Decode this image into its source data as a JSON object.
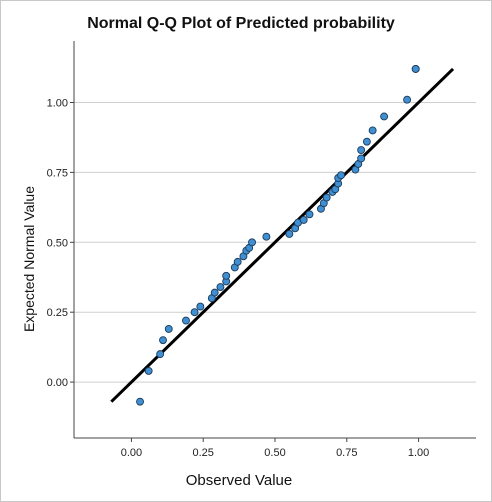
{
  "chart_data": {
    "type": "scatter",
    "title": "Normal Q-Q Plot of Predicted probability",
    "xlabel": "Observed Value",
    "ylabel": "Expected Normal Value",
    "xlim": [
      -0.2,
      1.2
    ],
    "ylim": [
      -0.2,
      1.22
    ],
    "x_ticks": [
      "0.00",
      "0.25",
      "0.50",
      "0.75",
      "1.00"
    ],
    "y_ticks": [
      "0.00",
      "0.25",
      "0.50",
      "0.75",
      "1.00"
    ],
    "grid": "horizontal",
    "reference_line": {
      "x": [
        -0.07,
        1.12
      ],
      "y": [
        -0.07,
        1.12
      ]
    },
    "series": [
      {
        "x": [
          0.03,
          0.06,
          0.1,
          0.11,
          0.13,
          0.19,
          0.22,
          0.24,
          0.28,
          0.29,
          0.31,
          0.33,
          0.33,
          0.36,
          0.37,
          0.39,
          0.4,
          0.41,
          0.42,
          0.47,
          0.55,
          0.57,
          0.58,
          0.6,
          0.62,
          0.66,
          0.67,
          0.68,
          0.7,
          0.71,
          0.72,
          0.72,
          0.73,
          0.78,
          0.79,
          0.8,
          0.8,
          0.82,
          0.84,
          0.88,
          0.96,
          0.99,
          0.99
        ],
        "y": [
          -0.07,
          0.04,
          0.1,
          0.15,
          0.19,
          0.22,
          0.25,
          0.27,
          0.3,
          0.32,
          0.34,
          0.36,
          0.38,
          0.41,
          0.43,
          0.45,
          0.47,
          0.48,
          0.5,
          0.52,
          0.53,
          0.55,
          0.57,
          0.58,
          0.6,
          0.62,
          0.64,
          0.66,
          0.68,
          0.69,
          0.71,
          0.73,
          0.74,
          0.76,
          0.78,
          0.8,
          0.83,
          0.86,
          0.9,
          0.95,
          1.01,
          1.12,
          1.12
        ]
      }
    ]
  }
}
